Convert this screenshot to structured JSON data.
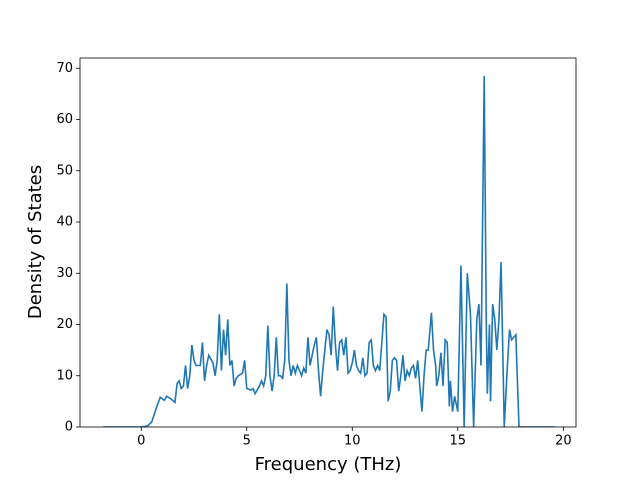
{
  "chart_data": {
    "type": "line",
    "xlabel": "Frequency (THz)",
    "ylabel": "Density of States",
    "xlim": [
      -2.9,
      20.6
    ],
    "ylim": [
      0,
      72
    ],
    "xticks": [
      0,
      5,
      10,
      15,
      20
    ],
    "yticks": [
      0,
      10,
      20,
      30,
      40,
      50,
      60,
      70
    ],
    "grid": false,
    "series": [
      {
        "color": "#1f77b4",
        "x": [
          -1.8,
          0,
          0.3,
          0.5,
          0.7,
          0.9,
          1.1,
          1.2,
          1.4,
          1.6,
          1.7,
          1.8,
          1.9,
          2.0,
          2.1,
          2.2,
          2.3,
          2.4,
          2.5,
          2.6,
          2.8,
          2.9,
          3.0,
          3.1,
          3.2,
          3.4,
          3.5,
          3.6,
          3.7,
          3.8,
          3.9,
          4.0,
          4.1,
          4.2,
          4.3,
          4.4,
          4.5,
          4.6,
          4.8,
          4.9,
          5.0,
          5.2,
          5.3,
          5.4,
          5.6,
          5.7,
          5.8,
          5.9,
          6.0,
          6.1,
          6.2,
          6.3,
          6.4,
          6.5,
          6.6,
          6.7,
          6.8,
          6.9,
          7.0,
          7.1,
          7.2,
          7.3,
          7.4,
          7.5,
          7.6,
          7.7,
          7.8,
          7.9,
          8.0,
          8.1,
          8.2,
          8.3,
          8.4,
          8.5,
          8.6,
          8.7,
          8.8,
          8.9,
          9.0,
          9.1,
          9.2,
          9.3,
          9.4,
          9.5,
          9.6,
          9.7,
          9.8,
          9.9,
          10.0,
          10.1,
          10.2,
          10.3,
          10.4,
          10.5,
          10.6,
          10.7,
          10.8,
          10.9,
          11.0,
          11.1,
          11.2,
          11.3,
          11.5,
          11.6,
          11.7,
          11.8,
          11.9,
          12.0,
          12.1,
          12.2,
          12.3,
          12.4,
          12.5,
          12.6,
          12.7,
          12.8,
          12.9,
          13.0,
          13.1,
          13.3,
          13.4,
          13.5,
          13.6,
          13.75,
          13.85,
          13.95,
          14.0,
          14.1,
          14.2,
          14.3,
          14.4,
          14.5,
          14.6,
          14.65,
          14.75,
          14.85,
          15.0,
          15.15,
          15.3,
          15.45,
          15.6,
          15.75,
          15.9,
          16.0,
          16.1,
          16.25,
          16.35,
          16.4,
          16.5,
          16.55,
          16.65,
          16.75,
          16.85,
          16.95,
          17.05,
          17.2,
          17.35,
          17.45,
          17.55,
          17.75,
          17.9,
          19.6
        ],
        "values": [
          0,
          0,
          0.2,
          1,
          3.5,
          5.8,
          5.2,
          6,
          5.5,
          4.8,
          8.5,
          9,
          7.5,
          8,
          12,
          7.5,
          10,
          16,
          13,
          12,
          12,
          16.5,
          9,
          12,
          14,
          12.5,
          10,
          13,
          22,
          11,
          19,
          14,
          21,
          12,
          13,
          8,
          9.5,
          10,
          10.5,
          13,
          7.5,
          7.2,
          7.5,
          6.5,
          8,
          9,
          8,
          10,
          19.8,
          10,
          7,
          10,
          17.5,
          10,
          10,
          9.5,
          13,
          28,
          13,
          10,
          12,
          10.5,
          12,
          11,
          10,
          11.5,
          10.5,
          17.5,
          12,
          14,
          16,
          17.5,
          11,
          6,
          11,
          15,
          19,
          18,
          14,
          23.5,
          16,
          11,
          16.5,
          17,
          14,
          17.5,
          10.5,
          11,
          12.5,
          15,
          12,
          11,
          10.5,
          13.5,
          10,
          10.5,
          16.5,
          17,
          12,
          11,
          12,
          11,
          22,
          21.5,
          5,
          7,
          13,
          13.5,
          13,
          7,
          10,
          14,
          9,
          11,
          10,
          11.5,
          12,
          9.5,
          13,
          3,
          10,
          15,
          15,
          22.3,
          15,
          12,
          8,
          10,
          14.5,
          8,
          17,
          16.5,
          4,
          9,
          3,
          6,
          3,
          31.5,
          0,
          30,
          22,
          0,
          21,
          24,
          12,
          68.5,
          20,
          6.5,
          20,
          5,
          24,
          21,
          15,
          21,
          32.2,
          0,
          12,
          19,
          17,
          18,
          0,
          0
        ]
      }
    ]
  }
}
